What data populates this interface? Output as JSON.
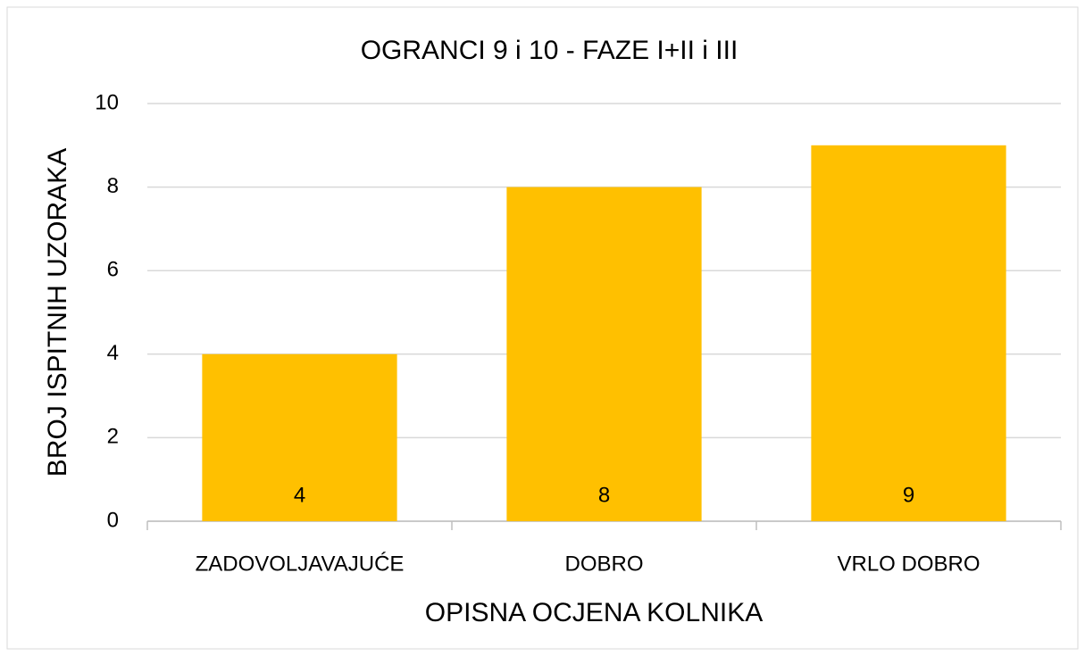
{
  "chart_data": {
    "type": "bar",
    "title": "OGRANCI 9 i 10 - FAZE I+II i III",
    "xlabel": "OPISNA OCJENA KOLNIKA",
    "ylabel": "BROJ ISPITNIH UZORAKA",
    "categories": [
      "ZADOVOLJAVAJUĆE",
      "DOBRO",
      "VRLO DOBRO"
    ],
    "values": [
      4,
      8,
      9
    ],
    "color": "#ffc000",
    "ylim": [
      0,
      10
    ],
    "yticks": [
      0,
      2,
      4,
      6,
      8,
      10
    ],
    "grid": true
  }
}
